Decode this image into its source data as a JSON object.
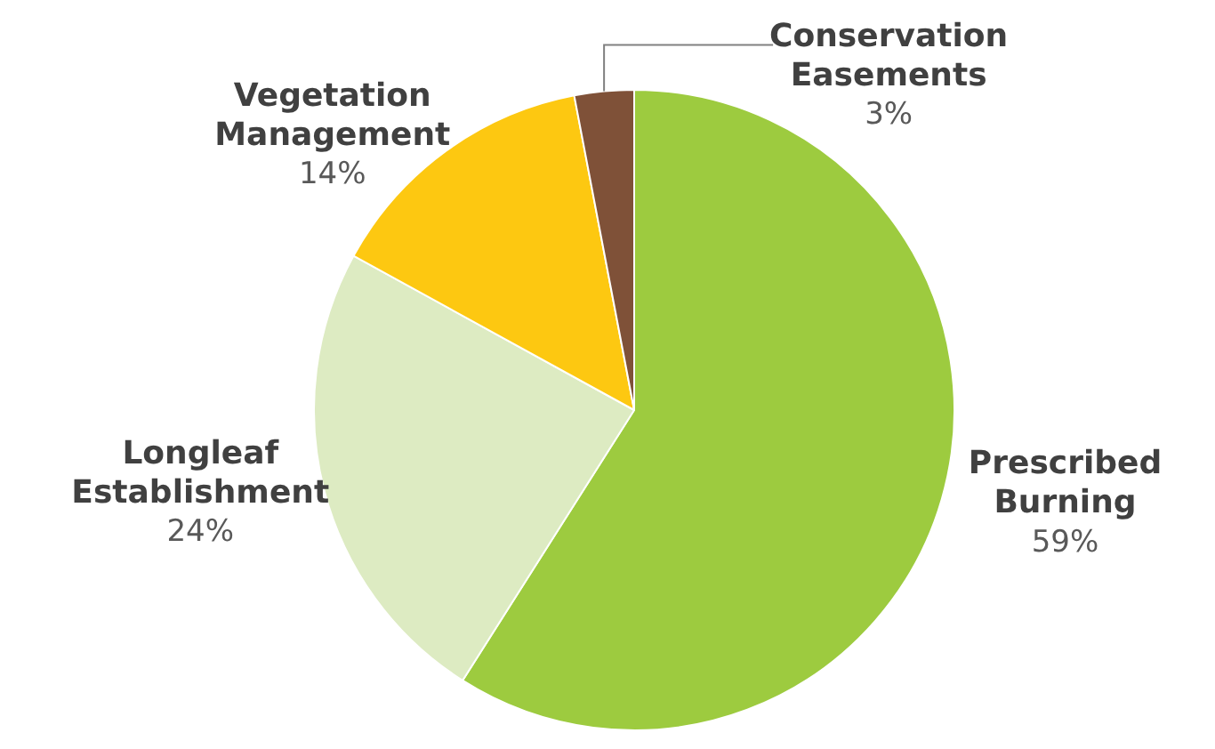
{
  "chart_data": {
    "type": "pie",
    "categories": [
      "Prescribed Burning",
      "Longleaf Establishment",
      "Vegetation Management",
      "Conservation Easements"
    ],
    "values": [
      59,
      24,
      14,
      3
    ],
    "value_labels": [
      "59%",
      "24%",
      "14%",
      "3%"
    ],
    "colors": [
      "#9dcb3f",
      "#ddebc2",
      "#fdc811",
      "#7f5138"
    ],
    "legend": false
  }
}
